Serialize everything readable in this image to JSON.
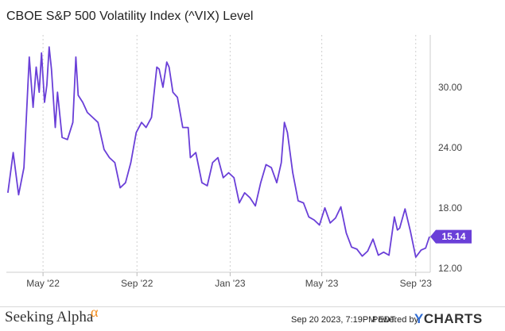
{
  "chart_data": {
    "type": "line",
    "title": "CBOE S&P 500 Volatility Index (^VIX) Level",
    "series": [
      {
        "color": "#6a3fd8",
        "last_value_label": "15.14",
        "x": [
          "2022-03-16",
          "2022-03-23",
          "2022-03-30",
          "2022-04-06",
          "2022-04-13",
          "2022-04-18",
          "2022-04-22",
          "2022-04-26",
          "2022-04-29",
          "2022-05-03",
          "2022-05-06",
          "2022-05-09",
          "2022-05-12",
          "2022-05-17",
          "2022-05-20",
          "2022-05-26",
          "2022-06-02",
          "2022-06-09",
          "2022-06-13",
          "2022-06-16",
          "2022-06-22",
          "2022-06-28",
          "2022-07-05",
          "2022-07-12",
          "2022-07-20",
          "2022-07-27",
          "2022-08-03",
          "2022-08-10",
          "2022-08-17",
          "2022-08-24",
          "2022-08-31",
          "2022-09-07",
          "2022-09-13",
          "2022-09-20",
          "2022-09-27",
          "2022-09-30",
          "2022-10-05",
          "2022-10-10",
          "2022-10-13",
          "2022-10-18",
          "2022-10-24",
          "2022-10-31",
          "2022-11-07",
          "2022-11-10",
          "2022-11-17",
          "2022-11-25",
          "2022-12-02",
          "2022-12-09",
          "2022-12-16",
          "2022-12-23",
          "2022-12-30",
          "2023-01-06",
          "2023-01-13",
          "2023-01-20",
          "2023-01-27",
          "2023-02-03",
          "2023-02-10",
          "2023-02-17",
          "2023-02-24",
          "2023-03-03",
          "2023-03-09",
          "2023-03-13",
          "2023-03-17",
          "2023-03-24",
          "2023-03-31",
          "2023-04-07",
          "2023-04-14",
          "2023-04-21",
          "2023-04-28",
          "2023-05-05",
          "2023-05-12",
          "2023-05-19",
          "2023-05-26",
          "2023-06-02",
          "2023-06-09",
          "2023-06-16",
          "2023-06-23",
          "2023-06-30",
          "2023-07-07",
          "2023-07-14",
          "2023-07-21",
          "2023-07-28",
          "2023-08-04",
          "2023-08-08",
          "2023-08-11",
          "2023-08-18",
          "2023-08-25",
          "2023-09-01",
          "2023-09-08",
          "2023-09-14",
          "2023-09-19"
        ],
        "y": [
          19.5,
          23.5,
          19.3,
          22.0,
          33.0,
          28.0,
          32.0,
          29.5,
          33.4,
          28.5,
          30.2,
          34.0,
          31.8,
          26.0,
          29.5,
          25.0,
          24.8,
          26.5,
          33.0,
          29.2,
          28.5,
          27.5,
          27.0,
          26.5,
          23.8,
          23.0,
          22.5,
          20.0,
          20.5,
          22.5,
          25.5,
          26.5,
          26.0,
          27.0,
          32.0,
          31.8,
          30.0,
          32.5,
          32.0,
          29.5,
          29.0,
          26.0,
          26.0,
          23.0,
          23.5,
          20.5,
          20.2,
          22.5,
          23.0,
          21.0,
          21.5,
          21.0,
          18.5,
          19.5,
          19.0,
          18.2,
          20.5,
          22.3,
          22.0,
          20.5,
          22.5,
          26.5,
          25.5,
          21.5,
          18.7,
          18.5,
          17.1,
          16.8,
          16.3,
          18.0,
          16.5,
          17.0,
          18.1,
          15.5,
          14.1,
          13.9,
          13.2,
          13.7,
          14.9,
          13.3,
          13.6,
          13.3,
          17.1,
          15.8,
          16.0,
          17.9,
          15.7,
          13.1,
          13.8,
          14.0,
          15.14
        ]
      }
    ],
    "x_tick_labels": [
      "May '22",
      "Sep '22",
      "Jan '23",
      "May '23",
      "Sep '23"
    ],
    "y_tick_labels": [
      "12.00",
      "18.00",
      "24.00",
      "30.00"
    ],
    "ylim": [
      11.6,
      35.2
    ],
    "xlim": [
      "2022-03-14",
      "2023-09-20"
    ],
    "grid": "vertical dotted",
    "legend": "none"
  },
  "footer": {
    "brand_name": "Seeking Alpha",
    "brand_symbol": "α",
    "timestamp": "Sep 20 2023, 7:19PM EDT.",
    "powered_by": "Powered by",
    "provider": "CHARTS",
    "provider_initial": "Y"
  }
}
